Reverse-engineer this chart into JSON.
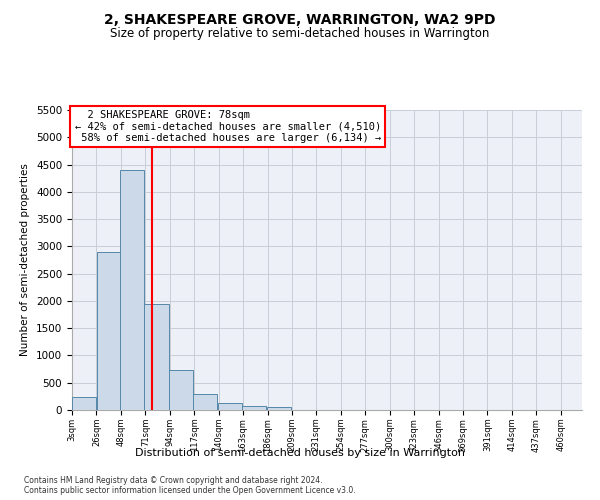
{
  "title": "2, SHAKESPEARE GROVE, WARRINGTON, WA2 9PD",
  "subtitle": "Size of property relative to semi-detached houses in Warrington",
  "xlabel": "Distribution of semi-detached houses by size in Warrington",
  "ylabel": "Number of semi-detached properties",
  "bar_values": [
    230,
    2900,
    4400,
    1950,
    730,
    290,
    120,
    70,
    50,
    0,
    0,
    0,
    0,
    0,
    0,
    0,
    0,
    0,
    0
  ],
  "bar_left_edges": [
    3,
    26,
    48,
    71,
    94,
    117,
    140,
    163,
    186,
    209,
    231,
    254,
    277,
    300,
    323,
    346,
    391,
    414,
    437
  ],
  "bin_width": 23,
  "bar_color": "#ccd9e8",
  "bar_edge_color": "#5588aa",
  "property_size": 78,
  "property_label": "2 SHAKESPEARE GROVE: 78sqm",
  "pct_smaller": 42,
  "pct_larger": 58,
  "count_smaller": 4510,
  "count_larger": 6134,
  "vline_color": "red",
  "ylim": [
    0,
    5500
  ],
  "yticks": [
    0,
    500,
    1000,
    1500,
    2000,
    2500,
    3000,
    3500,
    4000,
    4500,
    5000,
    5500
  ],
  "xtick_labels": [
    "3sqm",
    "26sqm",
    "48sqm",
    "71sqm",
    "94sqm",
    "117sqm",
    "140sqm",
    "163sqm",
    "186sqm",
    "209sqm",
    "231sqm",
    "254sqm",
    "277sqm",
    "300sqm",
    "323sqm",
    "346sqm",
    "369sqm",
    "391sqm",
    "414sqm",
    "437sqm",
    "460sqm"
  ],
  "annotation_box_color": "white",
  "annotation_box_edge_color": "red",
  "bg_color": "#edf1f7",
  "grid_color": "#c8cdd8",
  "title_fontsize": 10,
  "subtitle_fontsize": 8.5,
  "footer": "Contains HM Land Registry data © Crown copyright and database right 2024.\nContains public sector information licensed under the Open Government Licence v3.0."
}
